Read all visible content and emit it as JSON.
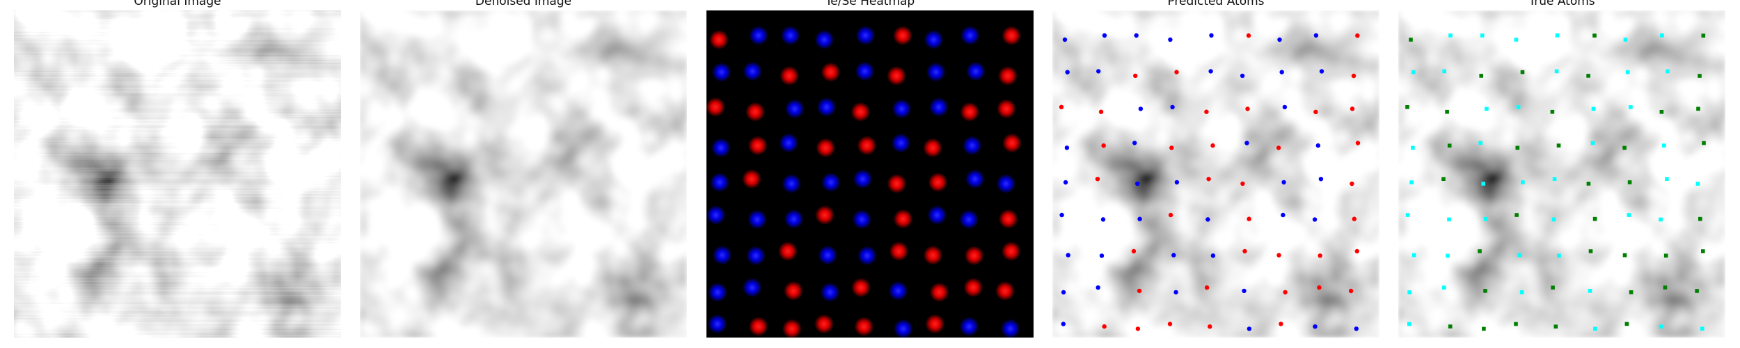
{
  "figure": {
    "panels": [
      {
        "title": "Original Image"
      },
      {
        "title": "Denoised Image"
      },
      {
        "title": "Te/Se Heatmap"
      },
      {
        "title": "Predicted Atoms"
      },
      {
        "title": "True Atoms"
      }
    ]
  },
  "colors": {
    "te": "#ff0000",
    "se": "#0000ff",
    "true_type_a": "#00ffff",
    "true_type_b": "#008000"
  },
  "atom_grid": {
    "rows": 9,
    "cols": 9,
    "heatmap_types": [
      "RBBBBRBBR",
      "BBRRBRBBR",
      "RRBBRBBRR",
      "BRBRRBRBR",
      "BRBBBRRBB",
      "BBBRBRBBR",
      "BBRBBRRRR",
      "BBRBRBRRR",
      "BRRRRBRBB"
    ],
    "predicted_types": [
      "BBBBBRBBR",
      "BBRRBBBBR",
      "RRBBRRBRR",
      "BRBRRBRBR",
      "BRBBRRBBR",
      "BBBRBRBBR",
      "BBRBBRRRR",
      "BBRBRBRRR",
      "BRRRRBRBB"
    ],
    "true_types": [
      "GCCCCGCCG",
      "CCGGCGCCG",
      "GGCCGCCGG",
      "CGCGGCGCG",
      "CGCCCGGCC",
      "CCCGCGCCG",
      "CCGCCGGGG",
      "CCGCGCGGG",
      "CGGGGCGCC"
    ]
  }
}
